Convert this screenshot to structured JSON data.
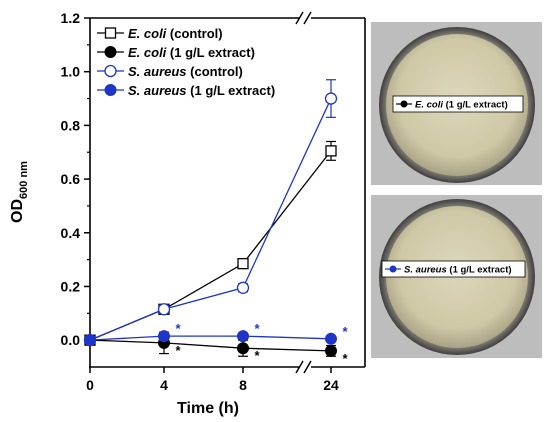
{
  "chart_data": {
    "type": "line",
    "xlabel": "Time (h)",
    "ylabel": "OD",
    "ylabel_sub": "600 nm",
    "categories": [
      "0",
      "4",
      "8",
      "24"
    ],
    "x": [
      0,
      4,
      8,
      24
    ],
    "ylim": [
      -0.1,
      1.2
    ],
    "yticks": [
      "0.0",
      "0.2",
      "0.4",
      "0.6",
      "0.8",
      "1.0",
      "1.2"
    ],
    "axis_break": "between 8 and 24",
    "grid": false,
    "legend_position": "top-left",
    "series": [
      {
        "name_italic": "E. coli",
        "name_rest": " (control)",
        "color": "#000000",
        "marker": "open-square",
        "values": [
          0.0,
          0.115,
          0.285,
          0.705
        ],
        "errors": [
          0.005,
          0.01,
          0.012,
          0.035
        ],
        "significant": [
          false,
          false,
          false,
          false
        ]
      },
      {
        "name_italic": "E. coli",
        "name_rest": " (1 g/L extract)",
        "color": "#000000",
        "marker": "filled-circle",
        "values": [
          0.0,
          -0.01,
          -0.03,
          -0.04
        ],
        "errors": [
          0.005,
          0.04,
          0.03,
          0.02
        ],
        "significant": [
          false,
          true,
          true,
          true
        ]
      },
      {
        "name_italic": "S. aureus",
        "name_rest": " (control)",
        "color": "#1f35c8",
        "marker": "open-circle",
        "values": [
          0.0,
          0.115,
          0.195,
          0.9
        ],
        "errors": [
          0.005,
          0.015,
          0.015,
          0.07
        ],
        "significant": [
          false,
          false,
          false,
          false
        ]
      },
      {
        "name_italic": "S. aureus",
        "name_rest": " (1 g/L extract)",
        "color": "#1f35c8",
        "marker": "filled-circle",
        "values": [
          0.0,
          0.015,
          0.015,
          0.005
        ],
        "errors": [
          0.005,
          0.015,
          0.01,
          0.01
        ],
        "significant": [
          false,
          true,
          true,
          true
        ]
      }
    ],
    "significance_marker": "*",
    "insets": [
      {
        "label_italic": "E. coli",
        "label_rest": " (1 g/L extract)",
        "color": "#000000"
      },
      {
        "label_italic": "S. aureus",
        "label_rest": " (1 g/L extract)",
        "color": "#1f35c8"
      }
    ]
  }
}
